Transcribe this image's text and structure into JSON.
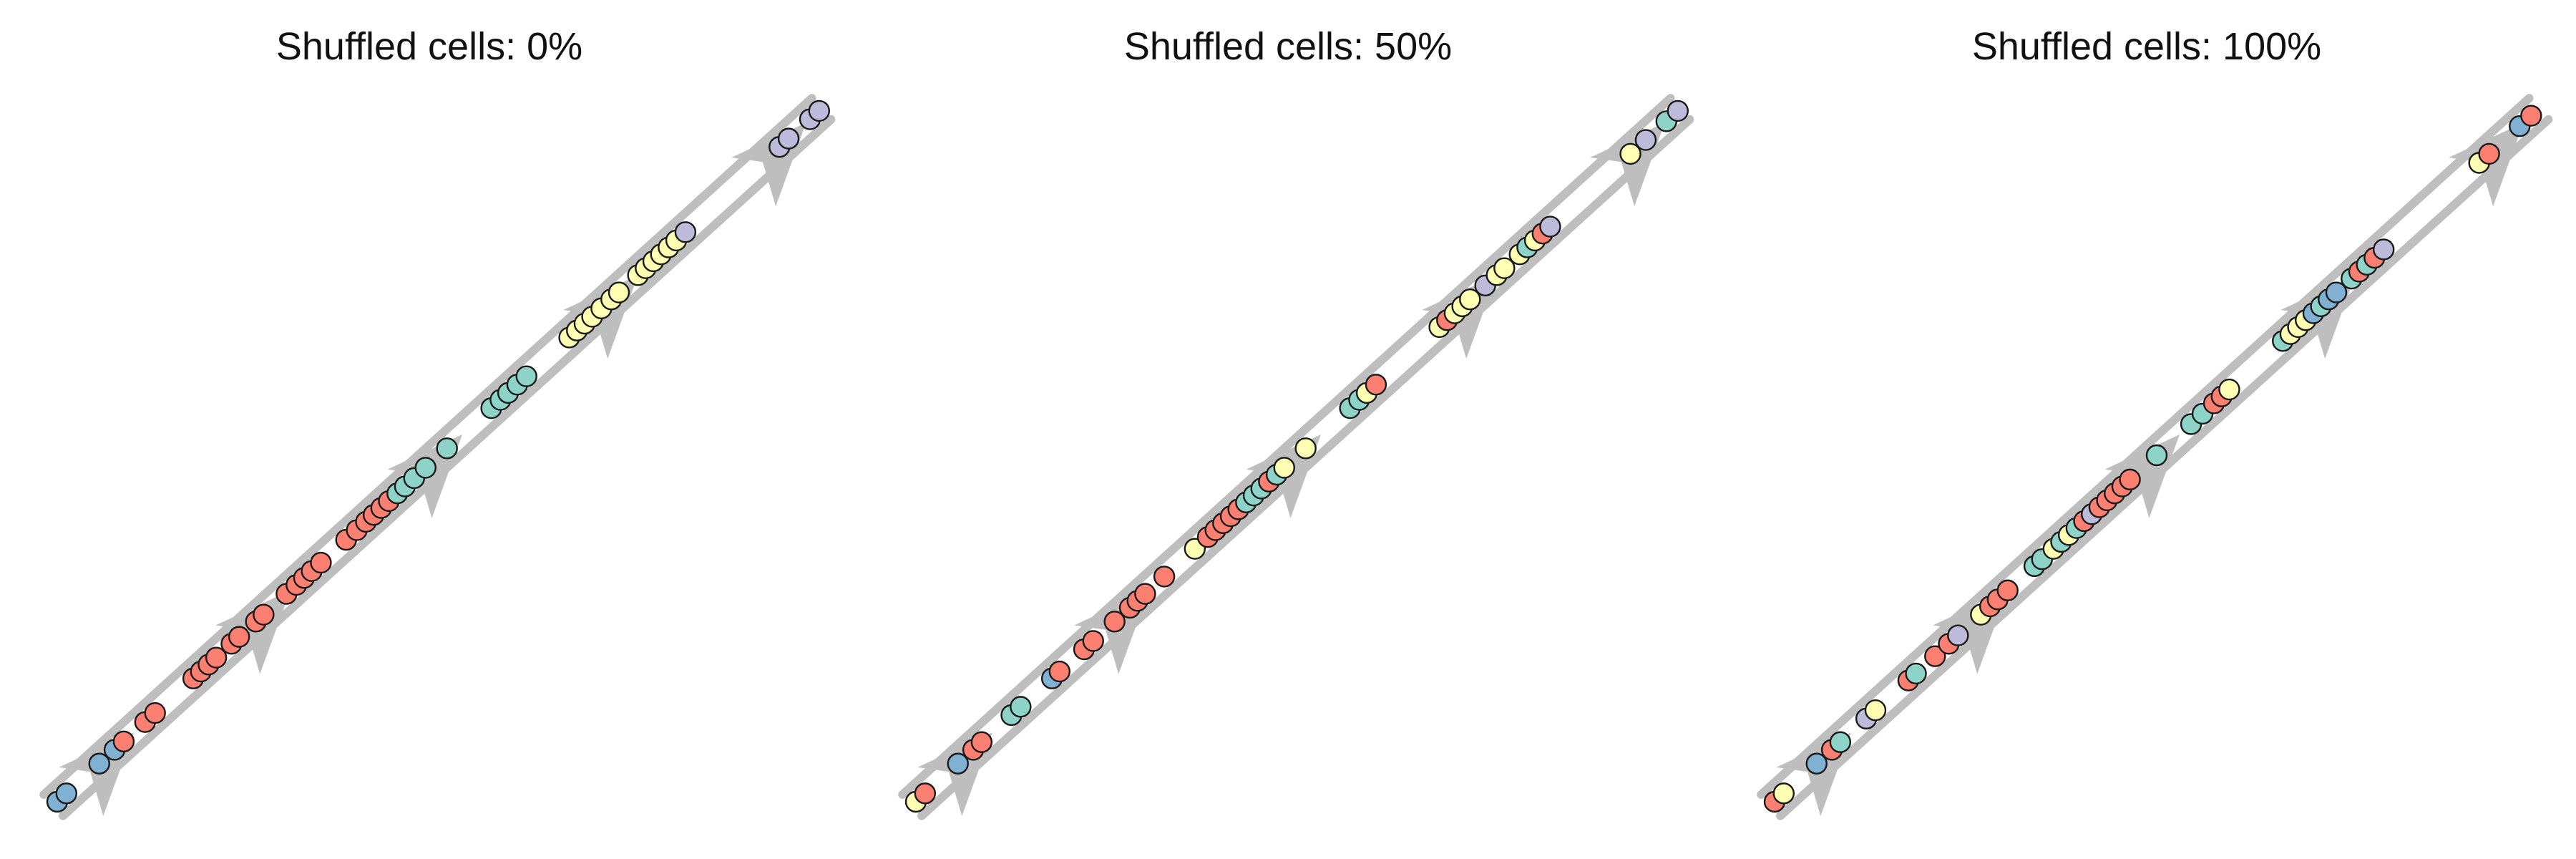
{
  "colors": {
    "blue": "#80B1D3",
    "red": "#FB8072",
    "teal": "#8DD3C7",
    "yellow": "#FFFFB3",
    "purple": "#BEBADA",
    "track": "#BEBEBE",
    "outline": "#1a1a1a"
  },
  "chart_data": [
    {
      "type": "scatter",
      "title": "Shuffled cells: 0%",
      "trajectory_arrows_at": [
        0.07,
        0.275,
        0.5,
        0.73,
        0.95
      ],
      "cells": [
        {
          "t": 0.0,
          "c": "blue"
        },
        {
          "t": 0.012,
          "c": "blue"
        },
        {
          "t": 0.055,
          "c": "blue"
        },
        {
          "t": 0.075,
          "c": "blue"
        },
        {
          "t": 0.087,
          "c": "red"
        },
        {
          "t": 0.115,
          "c": "red"
        },
        {
          "t": 0.128,
          "c": "red"
        },
        {
          "t": 0.178,
          "c": "red"
        },
        {
          "t": 0.188,
          "c": "red"
        },
        {
          "t": 0.198,
          "c": "red"
        },
        {
          "t": 0.208,
          "c": "red"
        },
        {
          "t": 0.228,
          "c": "red"
        },
        {
          "t": 0.238,
          "c": "red"
        },
        {
          "t": 0.26,
          "c": "red"
        },
        {
          "t": 0.27,
          "c": "red"
        },
        {
          "t": 0.3,
          "c": "red"
        },
        {
          "t": 0.313,
          "c": "red"
        },
        {
          "t": 0.323,
          "c": "red"
        },
        {
          "t": 0.333,
          "c": "red"
        },
        {
          "t": 0.345,
          "c": "red"
        },
        {
          "t": 0.378,
          "c": "red"
        },
        {
          "t": 0.392,
          "c": "red"
        },
        {
          "t": 0.404,
          "c": "red"
        },
        {
          "t": 0.414,
          "c": "red"
        },
        {
          "t": 0.424,
          "c": "red"
        },
        {
          "t": 0.434,
          "c": "red"
        },
        {
          "t": 0.445,
          "c": "teal"
        },
        {
          "t": 0.455,
          "c": "teal"
        },
        {
          "t": 0.467,
          "c": "teal"
        },
        {
          "t": 0.482,
          "c": "teal"
        },
        {
          "t": 0.51,
          "c": "teal"
        },
        {
          "t": 0.568,
          "c": "teal"
        },
        {
          "t": 0.58,
          "c": "teal"
        },
        {
          "t": 0.59,
          "c": "teal"
        },
        {
          "t": 0.602,
          "c": "teal"
        },
        {
          "t": 0.614,
          "c": "teal"
        },
        {
          "t": 0.67,
          "c": "yellow"
        },
        {
          "t": 0.68,
          "c": "yellow"
        },
        {
          "t": 0.69,
          "c": "yellow"
        },
        {
          "t": 0.7,
          "c": "yellow"
        },
        {
          "t": 0.712,
          "c": "yellow"
        },
        {
          "t": 0.725,
          "c": "yellow"
        },
        {
          "t": 0.735,
          "c": "yellow"
        },
        {
          "t": 0.76,
          "c": "yellow"
        },
        {
          "t": 0.77,
          "c": "yellow"
        },
        {
          "t": 0.78,
          "c": "yellow"
        },
        {
          "t": 0.79,
          "c": "yellow"
        },
        {
          "t": 0.8,
          "c": "yellow"
        },
        {
          "t": 0.81,
          "c": "yellow"
        },
        {
          "t": 0.822,
          "c": "purple"
        },
        {
          "t": 0.945,
          "c": "purple"
        },
        {
          "t": 0.957,
          "c": "purple"
        },
        {
          "t": 0.985,
          "c": "purple"
        },
        {
          "t": 0.997,
          "c": "purple"
        }
      ]
    },
    {
      "type": "scatter",
      "title": "Shuffled cells: 50%",
      "trajectory_arrows_at": [
        0.07,
        0.275,
        0.5,
        0.73,
        0.95
      ],
      "cells": [
        {
          "t": 0.0,
          "c": "yellow"
        },
        {
          "t": 0.012,
          "c": "red"
        },
        {
          "t": 0.055,
          "c": "blue"
        },
        {
          "t": 0.075,
          "c": "red"
        },
        {
          "t": 0.086,
          "c": "red"
        },
        {
          "t": 0.125,
          "c": "teal"
        },
        {
          "t": 0.137,
          "c": "teal"
        },
        {
          "t": 0.178,
          "c": "blue"
        },
        {
          "t": 0.188,
          "c": "red"
        },
        {
          "t": 0.22,
          "c": "red"
        },
        {
          "t": 0.232,
          "c": "red"
        },
        {
          "t": 0.26,
          "c": "red"
        },
        {
          "t": 0.28,
          "c": "red"
        },
        {
          "t": 0.29,
          "c": "red"
        },
        {
          "t": 0.3,
          "c": "red"
        },
        {
          "t": 0.325,
          "c": "red"
        },
        {
          "t": 0.365,
          "c": "yellow"
        },
        {
          "t": 0.382,
          "c": "red"
        },
        {
          "t": 0.392,
          "c": "red"
        },
        {
          "t": 0.402,
          "c": "red"
        },
        {
          "t": 0.412,
          "c": "red"
        },
        {
          "t": 0.422,
          "c": "red"
        },
        {
          "t": 0.432,
          "c": "teal"
        },
        {
          "t": 0.442,
          "c": "teal"
        },
        {
          "t": 0.452,
          "c": "teal"
        },
        {
          "t": 0.462,
          "c": "red"
        },
        {
          "t": 0.472,
          "c": "teal"
        },
        {
          "t": 0.482,
          "c": "yellow"
        },
        {
          "t": 0.51,
          "c": "yellow"
        },
        {
          "t": 0.568,
          "c": "teal"
        },
        {
          "t": 0.58,
          "c": "teal"
        },
        {
          "t": 0.59,
          "c": "yellow"
        },
        {
          "t": 0.602,
          "c": "red"
        },
        {
          "t": 0.685,
          "c": "yellow"
        },
        {
          "t": 0.695,
          "c": "red"
        },
        {
          "t": 0.705,
          "c": "yellow"
        },
        {
          "t": 0.715,
          "c": "yellow"
        },
        {
          "t": 0.725,
          "c": "yellow"
        },
        {
          "t": 0.745,
          "c": "purple"
        },
        {
          "t": 0.76,
          "c": "yellow"
        },
        {
          "t": 0.77,
          "c": "yellow"
        },
        {
          "t": 0.79,
          "c": "yellow"
        },
        {
          "t": 0.8,
          "c": "teal"
        },
        {
          "t": 0.81,
          "c": "yellow"
        },
        {
          "t": 0.82,
          "c": "red"
        },
        {
          "t": 0.83,
          "c": "purple"
        },
        {
          "t": 0.935,
          "c": "yellow"
        },
        {
          "t": 0.955,
          "c": "purple"
        },
        {
          "t": 0.982,
          "c": "teal"
        },
        {
          "t": 0.997,
          "c": "purple"
        }
      ]
    },
    {
      "type": "scatter",
      "title": "Shuffled cells: 100%",
      "trajectory_arrows_at": [
        0.07,
        0.275,
        0.5,
        0.73,
        0.95
      ],
      "cells": [
        {
          "t": 0.0,
          "c": "red"
        },
        {
          "t": 0.012,
          "c": "yellow"
        },
        {
          "t": 0.055,
          "c": "blue"
        },
        {
          "t": 0.075,
          "c": "red"
        },
        {
          "t": 0.086,
          "c": "teal"
        },
        {
          "t": 0.12,
          "c": "purple"
        },
        {
          "t": 0.132,
          "c": "yellow"
        },
        {
          "t": 0.175,
          "c": "red"
        },
        {
          "t": 0.185,
          "c": "teal"
        },
        {
          "t": 0.21,
          "c": "red"
        },
        {
          "t": 0.228,
          "c": "red"
        },
        {
          "t": 0.24,
          "c": "purple"
        },
        {
          "t": 0.27,
          "c": "yellow"
        },
        {
          "t": 0.282,
          "c": "red"
        },
        {
          "t": 0.292,
          "c": "red"
        },
        {
          "t": 0.305,
          "c": "red"
        },
        {
          "t": 0.34,
          "c": "teal"
        },
        {
          "t": 0.35,
          "c": "teal"
        },
        {
          "t": 0.365,
          "c": "yellow"
        },
        {
          "t": 0.375,
          "c": "teal"
        },
        {
          "t": 0.385,
          "c": "yellow"
        },
        {
          "t": 0.395,
          "c": "teal"
        },
        {
          "t": 0.405,
          "c": "red"
        },
        {
          "t": 0.415,
          "c": "purple"
        },
        {
          "t": 0.425,
          "c": "red"
        },
        {
          "t": 0.435,
          "c": "red"
        },
        {
          "t": 0.445,
          "c": "red"
        },
        {
          "t": 0.455,
          "c": "red"
        },
        {
          "t": 0.465,
          "c": "red"
        },
        {
          "t": 0.5,
          "c": "teal"
        },
        {
          "t": 0.545,
          "c": "teal"
        },
        {
          "t": 0.56,
          "c": "teal"
        },
        {
          "t": 0.575,
          "c": "red"
        },
        {
          "t": 0.585,
          "c": "red"
        },
        {
          "t": 0.595,
          "c": "yellow"
        },
        {
          "t": 0.665,
          "c": "teal"
        },
        {
          "t": 0.675,
          "c": "yellow"
        },
        {
          "t": 0.685,
          "c": "yellow"
        },
        {
          "t": 0.695,
          "c": "yellow"
        },
        {
          "t": 0.705,
          "c": "blue"
        },
        {
          "t": 0.715,
          "c": "teal"
        },
        {
          "t": 0.725,
          "c": "blue"
        },
        {
          "t": 0.735,
          "c": "blue"
        },
        {
          "t": 0.755,
          "c": "teal"
        },
        {
          "t": 0.765,
          "c": "red"
        },
        {
          "t": 0.775,
          "c": "teal"
        },
        {
          "t": 0.785,
          "c": "red"
        },
        {
          "t": 0.797,
          "c": "purple"
        },
        {
          "t": 0.922,
          "c": "yellow"
        },
        {
          "t": 0.935,
          "c": "red"
        },
        {
          "t": 0.975,
          "c": "blue"
        },
        {
          "t": 0.99,
          "c": "red"
        }
      ]
    }
  ]
}
